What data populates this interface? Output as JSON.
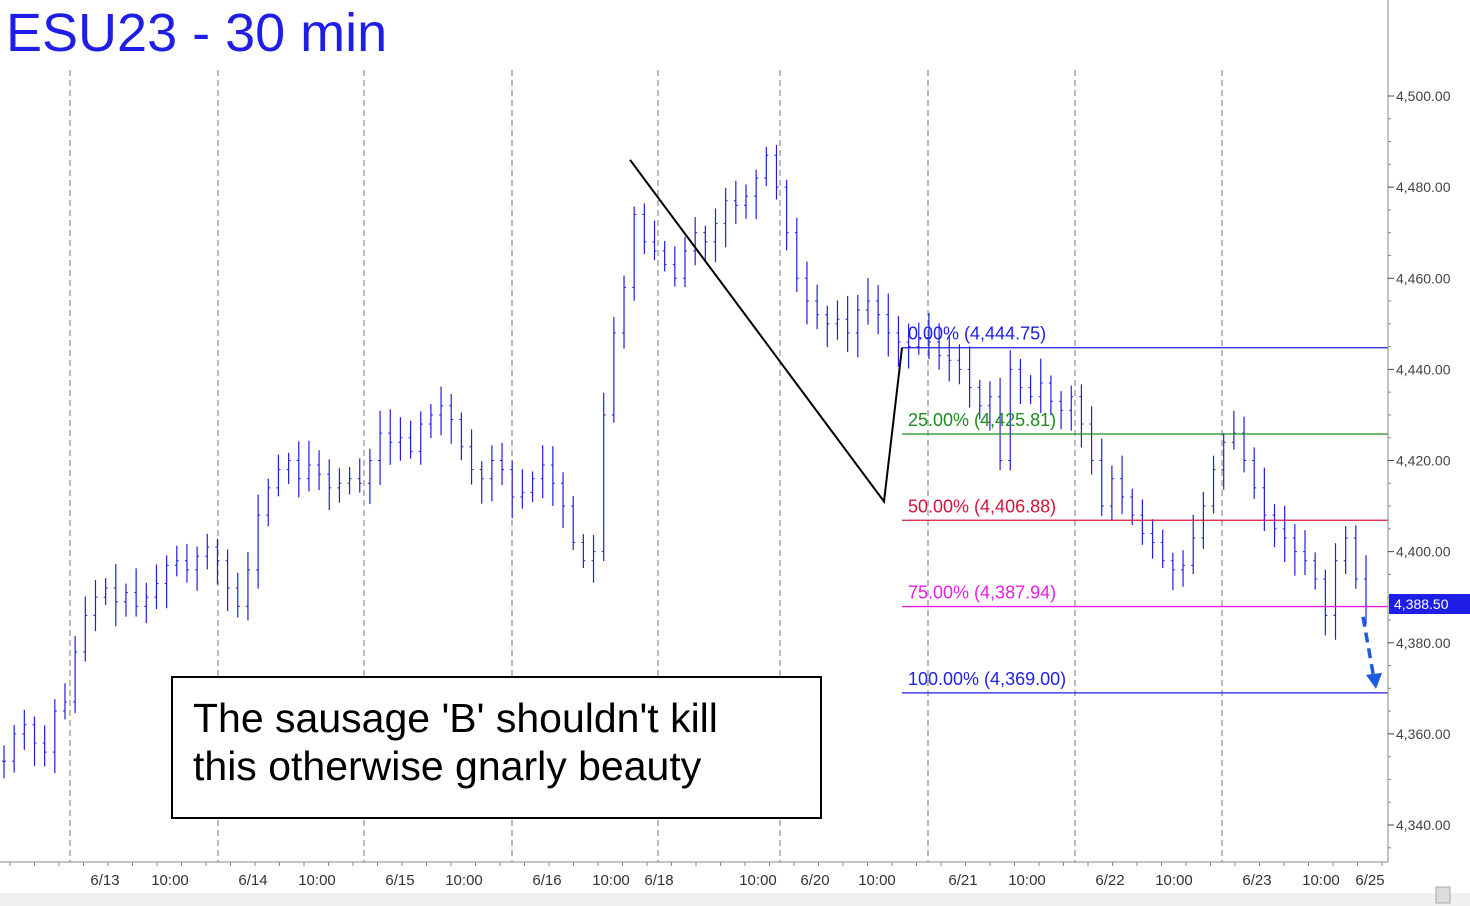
{
  "chart_data": {
    "type": "candlestick-bar",
    "title": "ESU23 - 30 min",
    "y_axis": {
      "ticks": [
        4340,
        4360,
        4380,
        4400,
        4420,
        4440,
        4460,
        4480,
        4500
      ],
      "tick_labels": [
        "4,340.00",
        "4,360.00",
        "4,380.00",
        "4,400.00",
        "4,420.00",
        "4,440.00",
        "4,460.00",
        "4,480.00",
        "4,500.00"
      ],
      "ylim": [
        4330,
        4510
      ],
      "position": "right"
    },
    "x_axis": {
      "tick_labels": [
        "6/13",
        "10:00",
        "6/14",
        "10:00",
        "6/15",
        "10:00",
        "6/16",
        "10:00",
        "6/18",
        "10:00",
        "6/20",
        "10:00",
        "6/21",
        "10:00",
        "6/22",
        "10:00",
        "6/23",
        "10:00",
        "6/25"
      ]
    },
    "price_tag": {
      "label": "4,388.50",
      "value": 4388.5
    },
    "series": [
      {
        "name": "",
        "color": "#1e1ee6",
        "close": [
          4354,
          4360,
          4362,
          4358,
          4356,
          4365,
          4367,
          4378,
          4386,
          4390,
          4392,
          4389,
          4391,
          4388,
          4390,
          4393,
          4397,
          4398,
          4396,
          4399,
          4401,
          4398,
          4392,
          4388,
          4396,
          4408,
          4414,
          4418,
          4420,
          4416,
          4419,
          4417,
          4414,
          4415,
          4416,
          4415,
          4420,
          4426,
          4424,
          4425,
          4422,
          4428,
          4430,
          4432,
          4429,
          4423,
          4418,
          4416,
          4420,
          4418,
          4412,
          4413,
          4416,
          4419,
          4415,
          4410,
          4402,
          4398,
          4400,
          4430,
          4448,
          4458,
          4474,
          4468,
          4466,
          4463,
          4460,
          4466,
          4470,
          4468,
          4472,
          4477,
          4476,
          4478,
          4482,
          4487,
          4480,
          4470,
          4460,
          4455,
          4452,
          4450,
          4451,
          4448,
          4453,
          4455,
          4452,
          4448,
          4446,
          4445,
          4447,
          4446,
          4443,
          4442,
          4440,
          4436,
          4432,
          4434,
          4420,
          4440,
          4436,
          4434,
          4437,
          4433,
          4431,
          4434,
          4428,
          4420,
          4410,
          4416,
          4412,
          4408,
          4404,
          4402,
          4398,
          4396,
          4397,
          4403,
          4410,
          4418,
          4424,
          4426,
          4420,
          4414,
          4408,
          4405,
          4403,
          4400,
          4398,
          4394,
          4386,
          4398,
          4403,
          4394,
          4388
        ]
      }
    ],
    "fib_levels": [
      {
        "label": "0.00% (4,444.75)",
        "value": 4444.75,
        "color": "#1e1ee6"
      },
      {
        "label": "25.00% (4,425.81)",
        "value": 4425.81,
        "color": "#1e8c1e"
      },
      {
        "label": "50.00% (4,406.88)",
        "value": 4406.88,
        "color": "#d2143c"
      },
      {
        "label": "75.00% (4,387.94)",
        "value": 4387.94,
        "color": "#e61ee6"
      },
      {
        "label": "100.00% (4,369.00)",
        "value": 4369.0,
        "color": "#1e1ee6"
      }
    ],
    "trend_line": [
      {
        "x": 4486
      },
      {
        "x": 4411
      },
      {
        "x": 4444.75
      }
    ],
    "target_arrow": {
      "from": 4387,
      "to": 4369
    },
    "grid": "vertical-dashed",
    "annotation": {
      "line1": "The sausage 'B' shouldn't kill",
      "line2": "this otherwise gnarly beauty"
    }
  }
}
